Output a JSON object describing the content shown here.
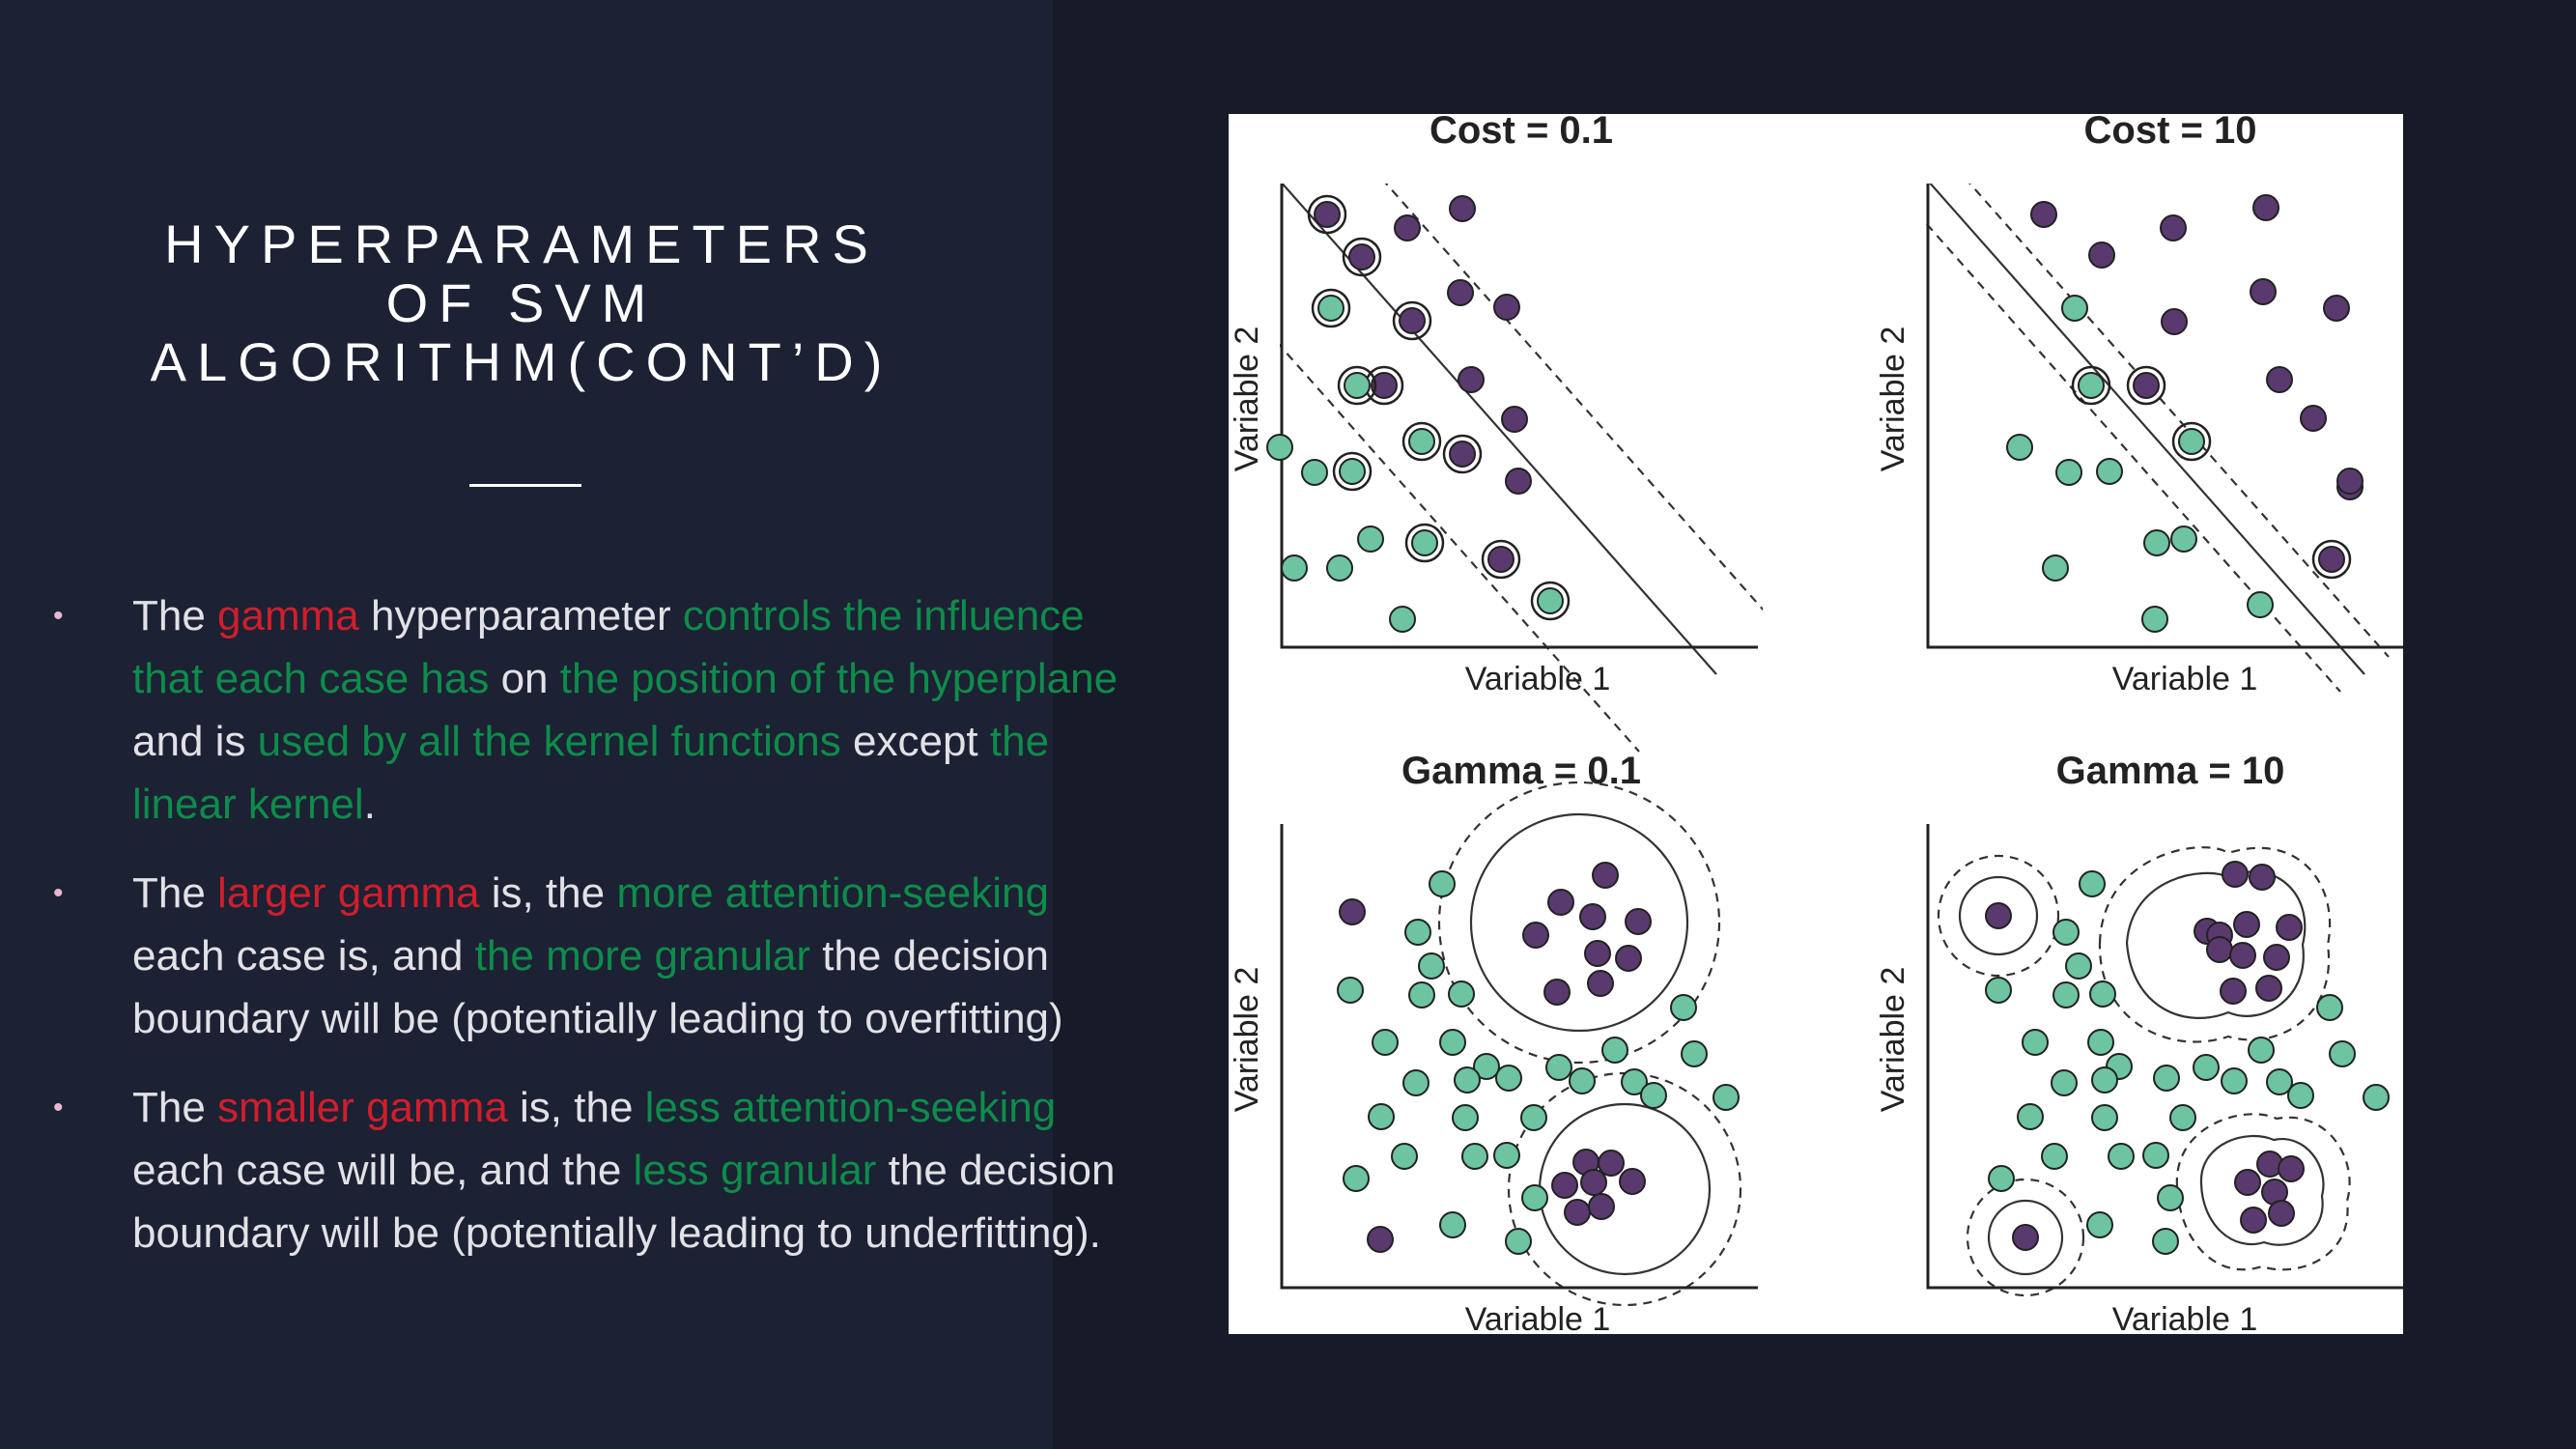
{
  "slide": {
    "title_lines": [
      "HYPERPARAMETERS",
      "OF SVM",
      "ALGORITHM(CONT’D)"
    ],
    "bullet_marker": "•",
    "bullets": [
      {
        "segments": [
          {
            "text": "The ",
            "color": "plain"
          },
          {
            "text": "gamma",
            "color": "red"
          },
          {
            "text": " hyperparameter ",
            "color": "plain"
          },
          {
            "text": "controls the influence that each case has",
            "color": "green"
          },
          {
            "text": " on ",
            "color": "plain"
          },
          {
            "text": "the position of the hyperplane",
            "color": "green"
          },
          {
            "text": " and is ",
            "color": "plain"
          },
          {
            "text": "used by all the kernel functions",
            "color": "green"
          },
          {
            "text": " except ",
            "color": "plain"
          },
          {
            "text": "the linear kernel",
            "color": "green"
          },
          {
            "text": ".",
            "color": "plain"
          }
        ]
      },
      {
        "segments": [
          {
            "text": "The ",
            "color": "plain"
          },
          {
            "text": "larger gamma",
            "color": "red"
          },
          {
            "text": " is, the ",
            "color": "plain"
          },
          {
            "text": "more attention-seeking",
            "color": "green"
          },
          {
            "text": " each case is, and ",
            "color": "plain"
          },
          {
            "text": "the more granular",
            "color": "green"
          },
          {
            "text": " the decision boundary will be (potentially leading to overfitting)",
            "color": "plain"
          }
        ]
      },
      {
        "segments": [
          {
            "text": "The ",
            "color": "plain"
          },
          {
            "text": "smaller gamma",
            "color": "red"
          },
          {
            "text": " is, the ",
            "color": "plain"
          },
          {
            "text": "less attention-seeking",
            "color": "green"
          },
          {
            "text": " each case will be, and the ",
            "color": "plain"
          },
          {
            "text": "less granular",
            "color": "green"
          },
          {
            "text": " the decision boundary will be (potentially leading to underfitting).",
            "color": "plain"
          }
        ]
      }
    ]
  },
  "figure": {
    "point_colors": {
      "class_a": "#5a3a6e",
      "class_b": "#6dc4a0"
    },
    "panels": [
      {
        "title": "Cost = 0.1",
        "xlabel": "Variable 1",
        "ylabel": "Variable 2"
      },
      {
        "title": "Cost = 10",
        "xlabel": "Variable 1",
        "ylabel": "Variable 2"
      },
      {
        "title": "Gamma = 0.1",
        "xlabel": "Variable 1",
        "ylabel": "Variable 2"
      },
      {
        "title": "Gamma = 10",
        "xlabel": "Variable 1",
        "ylabel": "Variable 2"
      }
    ]
  }
}
